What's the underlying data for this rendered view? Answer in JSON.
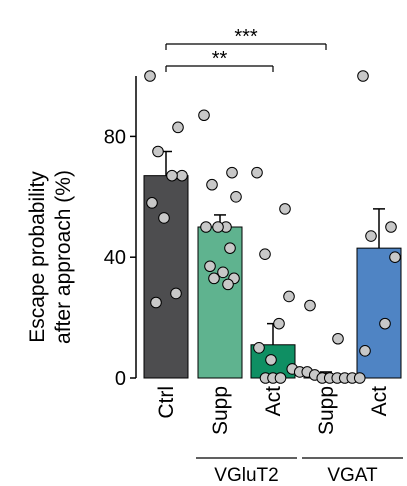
{
  "chart_data": {
    "type": "bar",
    "ylabel_lines": [
      "Escape probability",
      "after approach (%)"
    ],
    "ylim": [
      0,
      100
    ],
    "yticks": [
      0,
      40,
      80
    ],
    "categories": [
      "Ctrl",
      "Supp",
      "Act",
      "Supp",
      "Act"
    ],
    "groups": [
      {
        "label": "VGluT2",
        "categories": [
          1,
          2
        ]
      },
      {
        "label": "VGAT",
        "categories": [
          3,
          4
        ]
      }
    ],
    "bars": [
      {
        "category": "Ctrl",
        "value": 67,
        "error": 8,
        "color": "#4d4d4f"
      },
      {
        "category": "Supp",
        "value": 50,
        "error": 4,
        "color": "#5fb38f"
      },
      {
        "category": "Act",
        "value": 11,
        "error": 7,
        "color": "#0f8f63"
      },
      {
        "category": "Supp",
        "value": 1,
        "error": 1,
        "color": "#8a8a8a"
      },
      {
        "category": "Act",
        "value": 43,
        "error": 13,
        "color": "#4f84c4"
      }
    ],
    "points": [
      [
        100,
        83,
        75,
        67,
        67,
        58,
        53,
        28,
        25
      ],
      [
        87,
        68,
        64,
        60,
        50,
        50,
        50,
        43,
        37,
        35,
        33,
        33,
        31
      ],
      [
        68,
        56,
        41,
        27,
        18,
        10,
        6,
        0,
        0,
        0
      ],
      [
        24,
        13,
        3,
        2,
        2,
        1,
        0,
        0,
        0,
        0,
        0,
        0
      ],
      [
        100,
        50,
        47,
        40,
        18,
        9
      ]
    ],
    "significance": [
      {
        "from": 0,
        "to": 3,
        "label": "***"
      },
      {
        "from": 0,
        "to": 2,
        "label": "**"
      }
    ]
  }
}
